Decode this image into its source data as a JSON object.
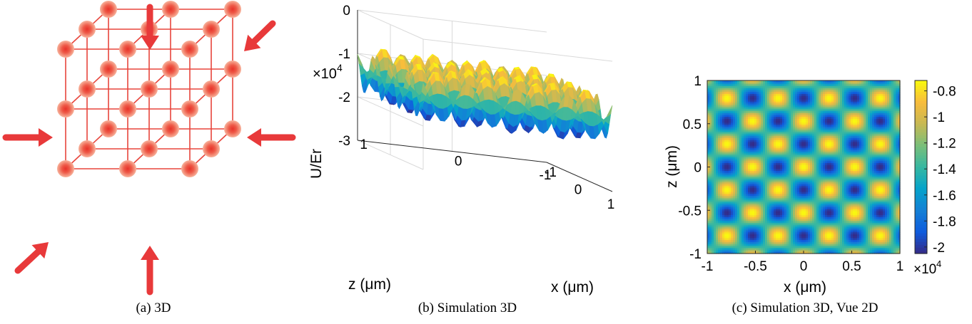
{
  "figure": {
    "captions": {
      "a": "(a) 3D",
      "b": "(b) Simulation 3D",
      "c": "(c) Simulation 3D, Vue 2D"
    },
    "colors": {
      "lattice": "#e8453c",
      "arrow": "#e8393a",
      "parula_low": "#352a87",
      "parula_mid": "#1fbfb8",
      "parula_high": "#f9fb0e"
    }
  },
  "chart_data": [
    {
      "type": "surface",
      "zlabel": "U/Er",
      "xlabel": "x (μm)",
      "ylabel": "z (μm)",
      "exponent_base": "×10",
      "exponent_power": "4",
      "x_ticks": [
        "-1",
        "0",
        "1"
      ],
      "y_ticks": [
        "1",
        "0",
        "-1"
      ],
      "z_ticks": [
        "0",
        "-1",
        "-2",
        "-3"
      ],
      "xlim": [
        -1,
        1
      ],
      "ylim": [
        -1,
        1
      ],
      "zlim": [
        -30000,
        0
      ],
      "min_value": -20000,
      "max_value": -7500,
      "period_um": 0.53
    },
    {
      "type": "heatmap",
      "xlabel": "x (μm)",
      "ylabel": "z (μm)",
      "x_ticks": [
        "-1",
        "-0.5",
        "0",
        "0.5",
        "1"
      ],
      "y_ticks": [
        "1",
        "0.5",
        "0",
        "-0.5",
        "-1"
      ],
      "xlim": [
        -1,
        1
      ],
      "ylim": [
        -1,
        1
      ],
      "colorbar_ticks": [
        "-0.8",
        "-1",
        "-1.2",
        "-1.4",
        "-1.6",
        "-1.8",
        "-2"
      ],
      "colorbar_exponent_base": "×10",
      "colorbar_exponent_power": "4",
      "clim": [
        -20500,
        -7200
      ],
      "period_um": 0.53
    }
  ]
}
